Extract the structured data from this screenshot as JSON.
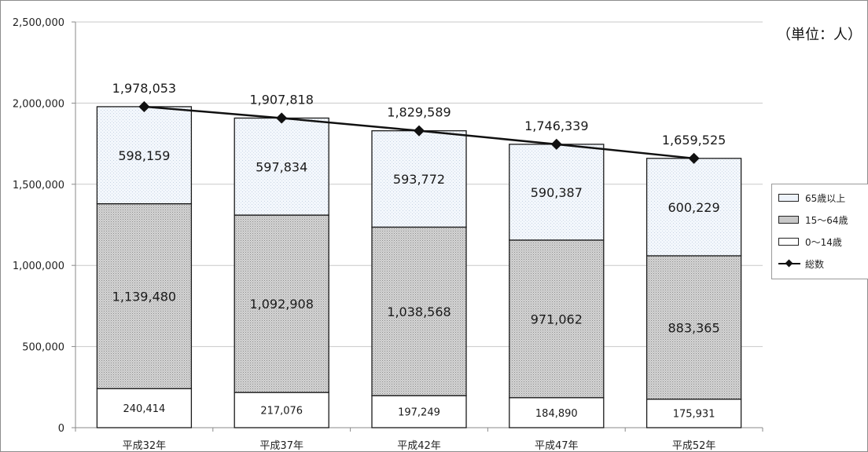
{
  "unit_label": "（単位：人）",
  "legend": [
    {
      "label": "65歳以上",
      "kind": "box",
      "fill": "#eef3fa"
    },
    {
      "label": "15～64歳",
      "kind": "box",
      "fill": "#c8c8c8"
    },
    {
      "label": "0～14歳",
      "kind": "box",
      "fill": "#ffffff"
    },
    {
      "label": "総数",
      "kind": "line",
      "color": "#111111"
    }
  ],
  "chart_data": {
    "type": "bar",
    "stacked": true,
    "categories": [
      "平成32年",
      "平成37年",
      "平成42年",
      "平成47年",
      "平成52年"
    ],
    "series": [
      {
        "name": "0～14歳",
        "values": [
          240414,
          217076,
          197249,
          184890,
          175931
        ],
        "value_labels": [
          "240,414",
          "217,076",
          "197,249",
          "184,890",
          "175,931"
        ],
        "fill": "#ffffff"
      },
      {
        "name": "15～64歳",
        "values": [
          1139480,
          1092908,
          1038568,
          971062,
          883365
        ],
        "value_labels": [
          "1,139,480",
          "1,092,908",
          "1,038,568",
          "971,062",
          "883,365"
        ],
        "fill": "#c8c8c8"
      },
      {
        "name": "65歳以上",
        "values": [
          598159,
          597834,
          593772,
          590387,
          600229
        ],
        "value_labels": [
          "598,159",
          "597,834",
          "593,772",
          "590,387",
          "600,229"
        ],
        "fill": "#eef3fa"
      }
    ],
    "line": {
      "name": "総数",
      "values": [
        1978053,
        1907818,
        1829589,
        1746339,
        1659525
      ],
      "value_labels": [
        "1,978,053",
        "1,907,818",
        "1,829,589",
        "1,746,339",
        "1,659,525"
      ]
    },
    "y_ticks": [
      {
        "value": 0,
        "label": "0"
      },
      {
        "value": 500000,
        "label": "500,000"
      },
      {
        "value": 1000000,
        "label": "1,000,000"
      },
      {
        "value": 1500000,
        "label": "1,500,000"
      },
      {
        "value": 2000000,
        "label": "2,000,000"
      },
      {
        "value": 2500000,
        "label": "2,500,000"
      }
    ],
    "ylim": [
      0,
      2500000
    ],
    "grid": true,
    "legend_position": "right"
  }
}
